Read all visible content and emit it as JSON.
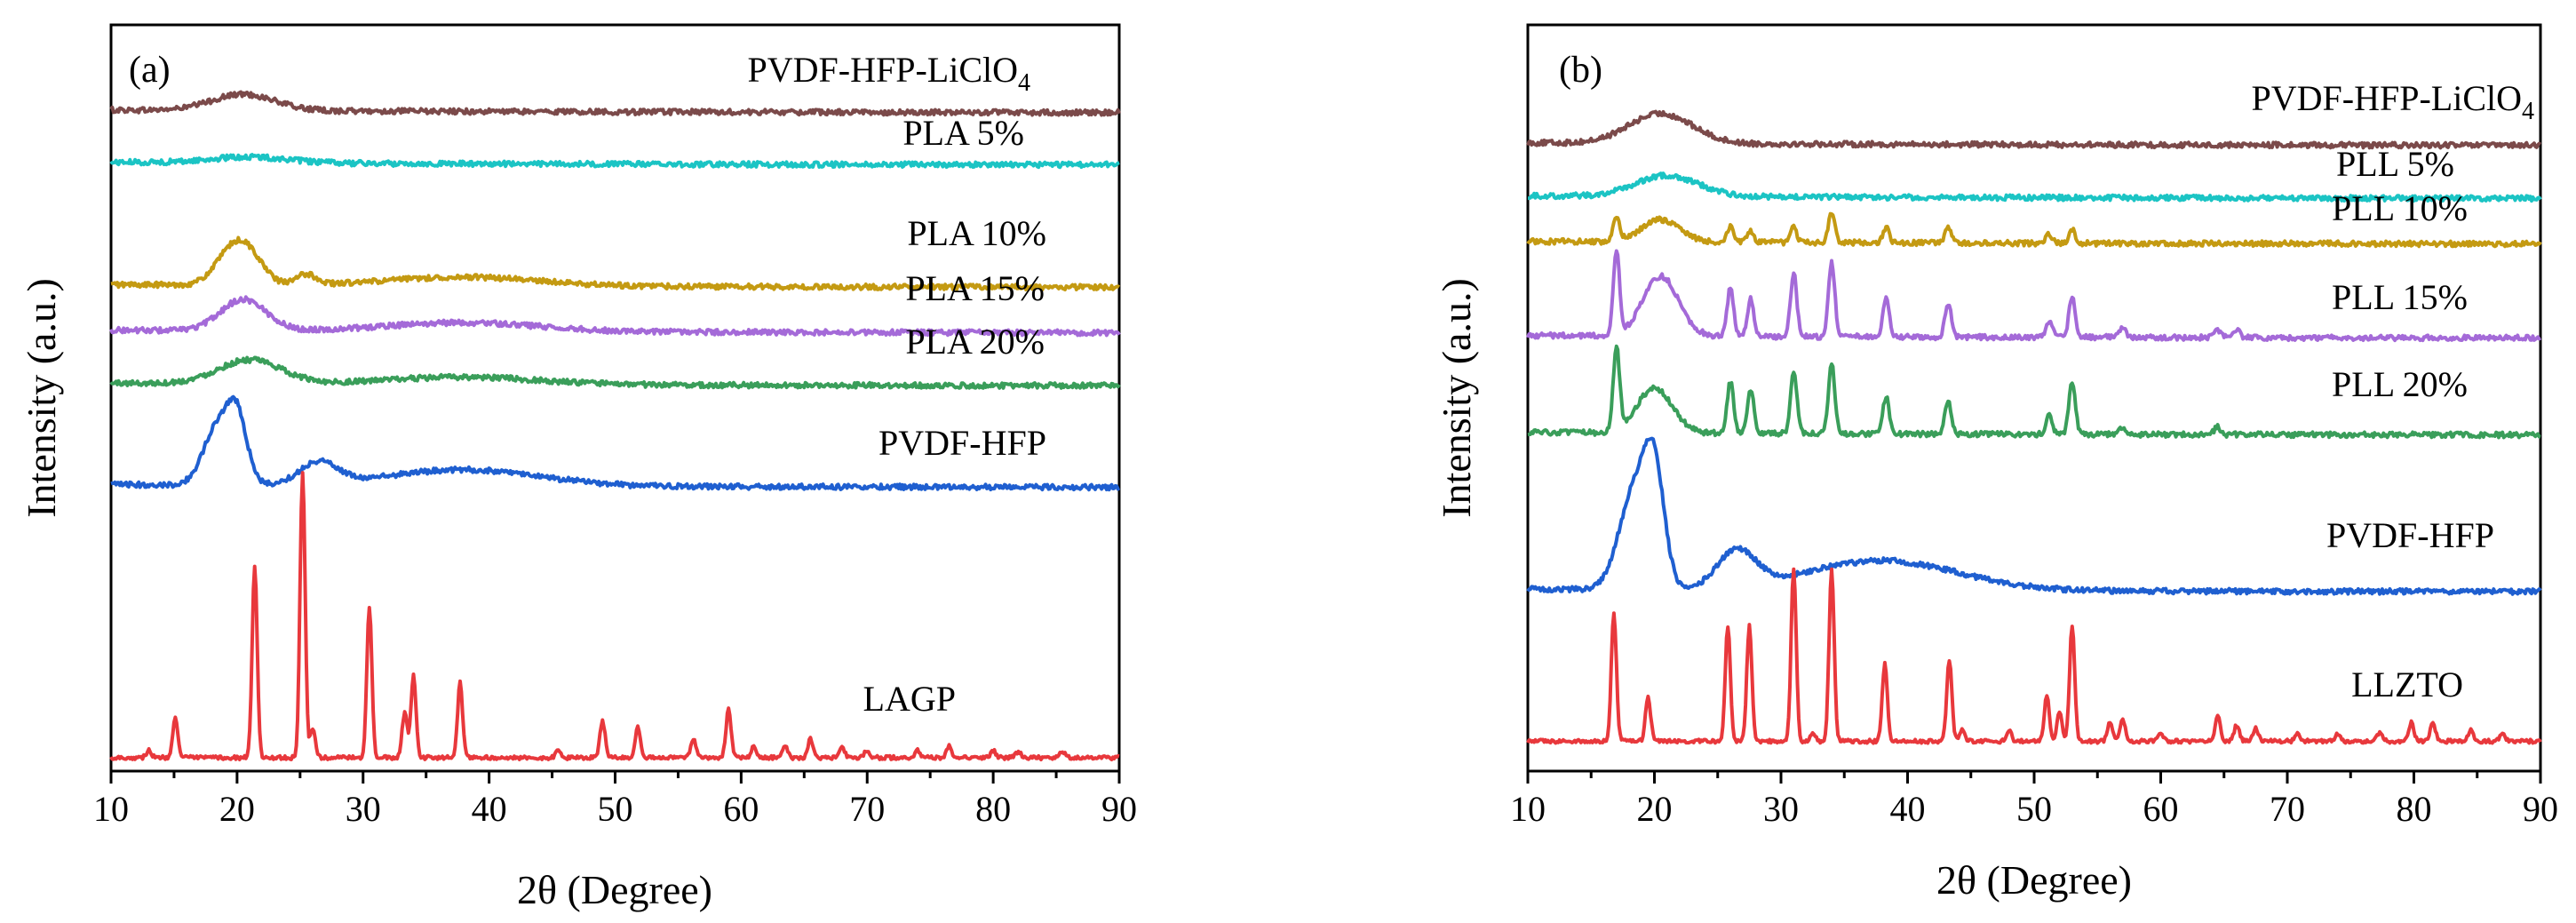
{
  "chart_data": [
    {
      "id": "a",
      "type": "line",
      "panel_label": "(a)",
      "xlabel": "2θ (Degree)",
      "ylabel": "Intensity (a.u.)",
      "xlim": [
        10,
        90
      ],
      "xticks": [
        10,
        20,
        30,
        40,
        50,
        60,
        70,
        80,
        90
      ],
      "yticks_shown": false,
      "series": [
        {
          "name": "PVDF-HFP-LiClO",
          "name_sub": "4",
          "color": "#7b4a4a",
          "baseline": 0.882,
          "kind": "amorphous",
          "peaks": [
            [
              20.5,
              0.022,
              2.5
            ]
          ]
        },
        {
          "name": "PLA 5%",
          "color": "#1bc4c4",
          "baseline": 0.812,
          "kind": "amorphous",
          "peaks": [
            [
              21,
              0.008,
              3
            ]
          ]
        },
        {
          "name": "PLA 10%",
          "color": "#c49a12",
          "baseline": 0.648,
          "kind": "amorphous",
          "peaks": [
            [
              19.5,
              0.04,
              1.3
            ],
            [
              21,
              0.032,
              1.2
            ],
            [
              25.5,
              0.014,
              0.8
            ],
            [
              38,
              0.012,
              6
            ]
          ]
        },
        {
          "name": "PLA 15%",
          "color": "#a46ad8",
          "baseline": 0.587,
          "kind": "amorphous",
          "peaks": [
            [
              20.5,
              0.042,
              1.8
            ],
            [
              38,
              0.012,
              6
            ]
          ]
        },
        {
          "name": "PLA 20%",
          "color": "#3a9e5a",
          "baseline": 0.516,
          "kind": "amorphous",
          "peaks": [
            [
              21,
              0.032,
              2.5
            ],
            [
              38,
              0.01,
              6
            ]
          ]
        },
        {
          "name": "PVDF-HFP",
          "color": "#1f5fd0",
          "baseline": 0.38,
          "kind": "amorphous",
          "peaks": [
            [
              18.4,
              0.075,
              1.1
            ],
            [
              20,
              0.085,
              0.8
            ],
            [
              26.5,
              0.03,
              1.5
            ],
            [
              38,
              0.022,
              6
            ]
          ]
        },
        {
          "name": "LAGP",
          "color": "#e8383c",
          "baseline": 0.018,
          "kind": "crystalline",
          "peaks": [
            [
              13,
              0.01,
              0.2
            ],
            [
              15.1,
              0.055,
              0.2
            ],
            [
              21.4,
              0.255,
              0.2
            ],
            [
              25.2,
              0.38,
              0.2
            ],
            [
              26,
              0.04,
              0.2
            ],
            [
              30.5,
              0.2,
              0.2
            ],
            [
              33.3,
              0.06,
              0.2
            ],
            [
              34,
              0.11,
              0.2
            ],
            [
              37.7,
              0.1,
              0.2
            ],
            [
              45.5,
              0.01,
              0.2
            ],
            [
              49,
              0.05,
              0.2
            ],
            [
              51.8,
              0.04,
              0.2
            ],
            [
              56.2,
              0.025,
              0.2
            ],
            [
              59,
              0.065,
              0.2
            ],
            [
              61,
              0.015,
              0.2
            ],
            [
              63.5,
              0.015,
              0.2
            ],
            [
              65.5,
              0.025,
              0.2
            ],
            [
              68,
              0.015,
              0.2
            ],
            [
              70,
              0.01,
              0.2
            ],
            [
              74,
              0.01,
              0.2
            ],
            [
              76.5,
              0.015,
              0.2
            ],
            [
              80,
              0.01,
              0.2
            ],
            [
              82,
              0.008,
              0.2
            ],
            [
              85.5,
              0.008,
              0.2
            ]
          ]
        }
      ]
    },
    {
      "id": "b",
      "type": "line",
      "panel_label": "(b)",
      "xlabel": "2θ (Degree)",
      "ylabel": "Intensity (a.u.)",
      "xlim": [
        10,
        90
      ],
      "xticks": [
        10,
        20,
        30,
        40,
        50,
        60,
        70,
        80,
        90
      ],
      "yticks_shown": false,
      "series": [
        {
          "name": "PVDF-HFP-LiClO",
          "name_sub": "4",
          "color": "#7b4a4a",
          "baseline": 0.838,
          "kind": "amorphous",
          "peaks": [
            [
              20.5,
              0.04,
              2.5
            ]
          ]
        },
        {
          "name": "PLL 5%",
          "color": "#1bc4c4",
          "baseline": 0.767,
          "kind": "amorphous",
          "peaks": [
            [
              21,
              0.028,
              2.5
            ]
          ]
        },
        {
          "name": "PLL 10%",
          "color": "#c49a12",
          "baseline": 0.706,
          "kind": "mixed",
          "peaks": [
            [
              17,
              0.03,
              0.25
            ],
            [
              20.5,
              0.03,
              1.5
            ],
            [
              26,
              0.022,
              0.25
            ],
            [
              27.6,
              0.015,
              0.25
            ],
            [
              31,
              0.02,
              0.25
            ],
            [
              34,
              0.04,
              0.25
            ],
            [
              38.3,
              0.02,
              0.25
            ],
            [
              43.2,
              0.02,
              0.25
            ],
            [
              51.2,
              0.012,
              0.25
            ],
            [
              53,
              0.018,
              0.25
            ]
          ]
        },
        {
          "name": "PLL 15%",
          "color": "#a46ad8",
          "baseline": 0.58,
          "kind": "mixed",
          "peaks": [
            [
              17,
              0.11,
              0.25
            ],
            [
              20.5,
              0.08,
              1.4
            ],
            [
              26,
              0.065,
              0.25
            ],
            [
              27.6,
              0.05,
              0.25
            ],
            [
              31,
              0.085,
              0.25
            ],
            [
              34,
              0.1,
              0.25
            ],
            [
              38.3,
              0.05,
              0.25
            ],
            [
              43.2,
              0.045,
              0.25
            ],
            [
              51.2,
              0.02,
              0.25
            ],
            [
              53,
              0.055,
              0.25
            ],
            [
              57,
              0.012,
              0.25
            ],
            [
              64.5,
              0.01,
              0.25
            ],
            [
              66,
              0.012,
              0.25
            ]
          ]
        },
        {
          "name": "PLL 20%",
          "color": "#3a9e5a",
          "baseline": 0.45,
          "kind": "mixed",
          "peaks": [
            [
              17,
              0.11,
              0.25
            ],
            [
              20,
              0.06,
              1.4
            ],
            [
              26,
              0.07,
              0.25
            ],
            [
              27.6,
              0.06,
              0.25
            ],
            [
              31,
              0.085,
              0.25
            ],
            [
              34,
              0.095,
              0.25
            ],
            [
              38.3,
              0.05,
              0.25
            ],
            [
              43.2,
              0.045,
              0.25
            ],
            [
              51.2,
              0.025,
              0.25
            ],
            [
              53,
              0.07,
              0.25
            ],
            [
              57,
              0.01,
              0.25
            ],
            [
              64.5,
              0.01,
              0.25
            ]
          ]
        },
        {
          "name": "PVDF-HFP",
          "color": "#1f5fd0",
          "baseline": 0.24,
          "kind": "amorphous",
          "peaks": [
            [
              18.4,
              0.13,
              1.2
            ],
            [
              20,
              0.14,
              0.8
            ],
            [
              26.5,
              0.05,
              1.5
            ],
            [
              38,
              0.04,
              6
            ]
          ]
        },
        {
          "name": "LLZTO",
          "color": "#e8383c",
          "baseline": 0.04,
          "kind": "crystalline",
          "peaks": [
            [
              16.8,
              0.172,
              0.2
            ],
            [
              19.5,
              0.06,
              0.2
            ],
            [
              25.8,
              0.155,
              0.2
            ],
            [
              27.5,
              0.155,
              0.2
            ],
            [
              31,
              0.232,
              0.2
            ],
            [
              32.5,
              0.012,
              0.2
            ],
            [
              34,
              0.232,
              0.2
            ],
            [
              38.2,
              0.103,
              0.2
            ],
            [
              43.3,
              0.11,
              0.2
            ],
            [
              44.3,
              0.015,
              0.2
            ],
            [
              48,
              0.015,
              0.2
            ],
            [
              51,
              0.06,
              0.2
            ],
            [
              52,
              0.04,
              0.2
            ],
            [
              53,
              0.155,
              0.2
            ],
            [
              56,
              0.025,
              0.2
            ],
            [
              57,
              0.03,
              0.2
            ],
            [
              60,
              0.01,
              0.2
            ],
            [
              64.5,
              0.035,
              0.2
            ],
            [
              66,
              0.022,
              0.2
            ],
            [
              67.5,
              0.018,
              0.2
            ],
            [
              70.8,
              0.01,
              0.2
            ],
            [
              74,
              0.01,
              0.2
            ],
            [
              77.3,
              0.012,
              0.2
            ],
            [
              79.8,
              0.025,
              0.2
            ],
            [
              81.5,
              0.025,
              0.2
            ],
            [
              84.5,
              0.015,
              0.2
            ],
            [
              87,
              0.01,
              0.2
            ]
          ]
        }
      ]
    }
  ]
}
